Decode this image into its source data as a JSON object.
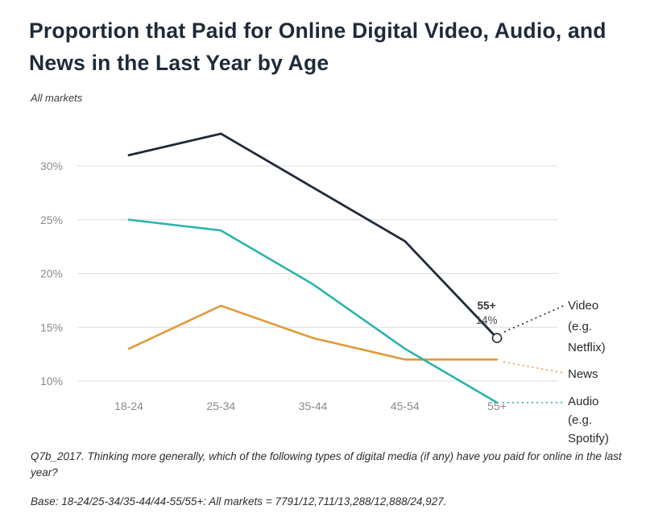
{
  "chart_data": {
    "type": "line",
    "title": "Proportion that Paid for Online Digital Video, Audio, and News in the Last Year by Age",
    "subtitle": "All markets",
    "categories": [
      "18-24",
      "25-34",
      "35-44",
      "45-54",
      "55+"
    ],
    "series": [
      {
        "name": "Video (e.g. Netflix)",
        "color": "#1f2a38",
        "values": [
          31,
          33,
          28,
          23,
          14
        ],
        "endpoint_marker": true
      },
      {
        "name": "Audio (e.g. Spotify)",
        "color": "#2bb3ae",
        "values": [
          25,
          24,
          19,
          13,
          8
        ]
      },
      {
        "name": "News",
        "color": "#e09a3c",
        "values": [
          13,
          17,
          14,
          12,
          12
        ]
      }
    ],
    "yticks": [
      10,
      15,
      20,
      25,
      30
    ],
    "ytick_labels": [
      "10%",
      "15%",
      "20%",
      "25%",
      "30%"
    ],
    "ylim": [
      7,
      34
    ],
    "grid": true,
    "grid_color": "#dcdcdc",
    "tick_color": "#8a8a8a",
    "legend_position": "right",
    "annotation": {
      "series": "Video (e.g. Netflix)",
      "category": "55+",
      "label": "55+",
      "value_label": "14%",
      "value": 14
    }
  },
  "footnotes": {
    "question": "Q7b_2017. Thinking more generally, which of the following types of digital media (if any) have you paid for online in the last year?",
    "base": "Base: 18-24/25-34/35-44/44-55/55+: All markets = 7791/12,711/13,288/12,888/24,927."
  },
  "colors": {
    "title_text": "#1f2a38",
    "footnote_text": "#2e2e2e",
    "background": "#ffffff"
  }
}
